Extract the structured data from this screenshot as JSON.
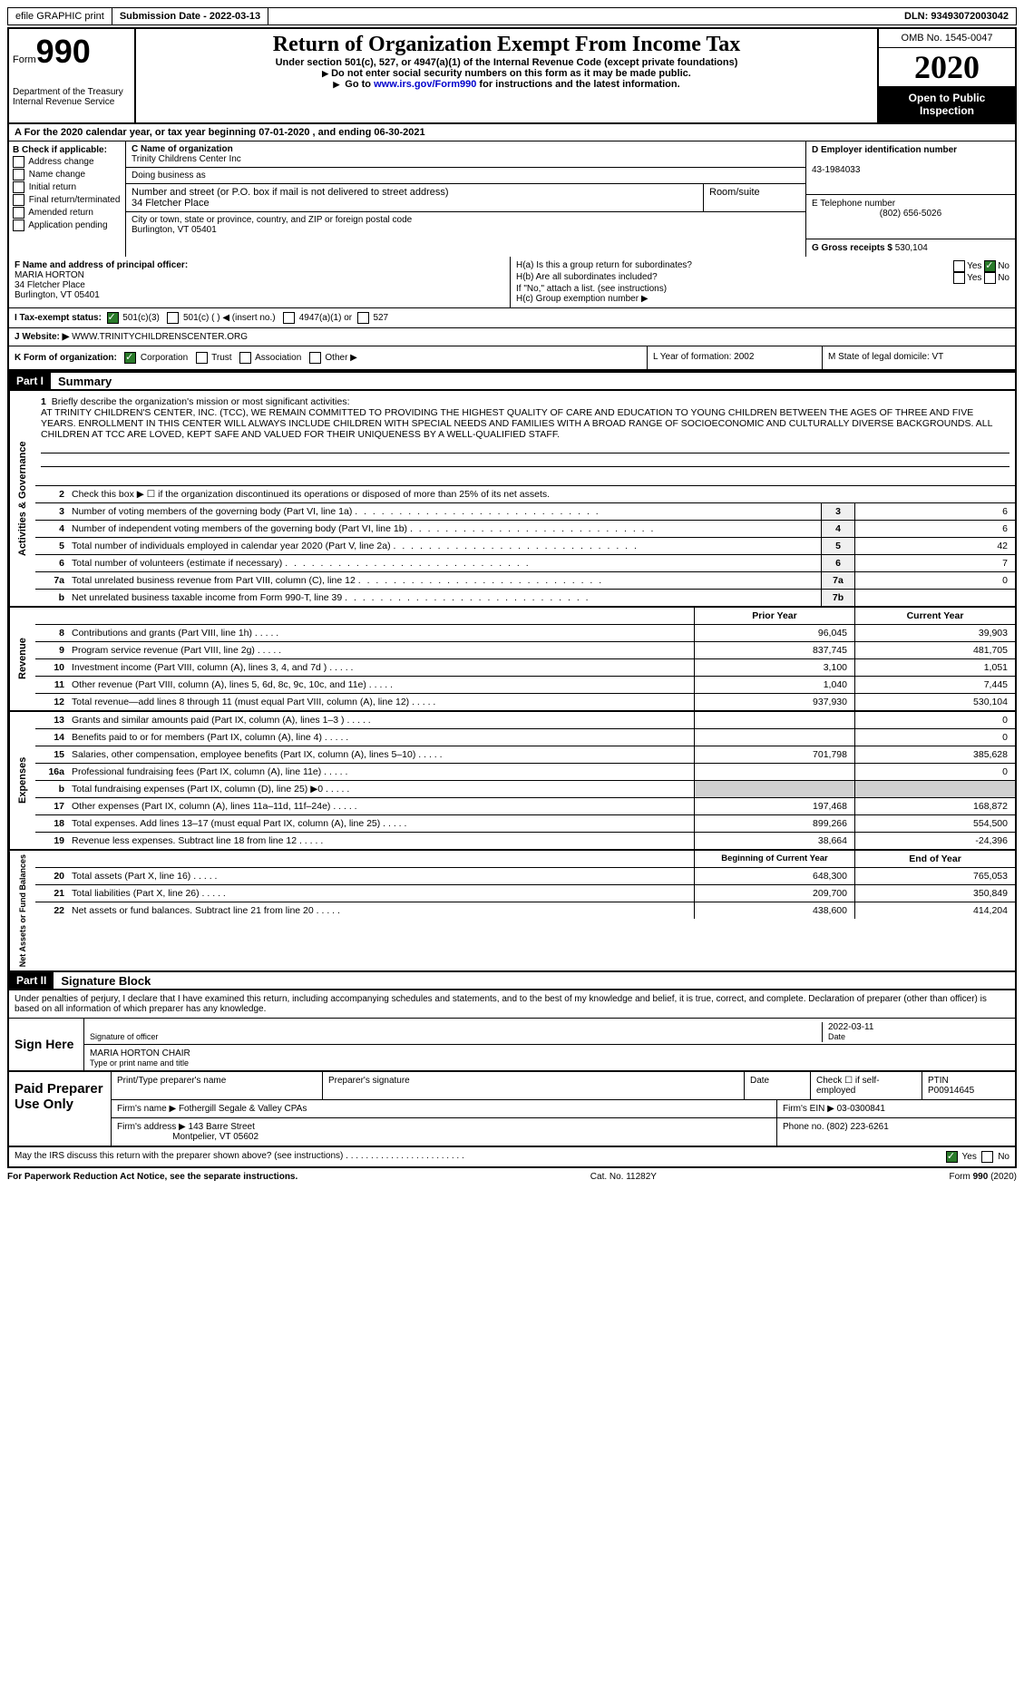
{
  "topbar": {
    "efile": "efile GRAPHIC print",
    "submission_label": "Submission Date - ",
    "submission_date": "2022-03-13",
    "dln_label": "DLN: ",
    "dln": "93493072003042"
  },
  "header": {
    "form_label": "Form",
    "form_num": "990",
    "title": "Return of Organization Exempt From Income Tax",
    "subtitle": "Under section 501(c), 527, or 4947(a)(1) of the Internal Revenue Code (except private foundations)",
    "note1": "Do not enter social security numbers on this form as it may be made public.",
    "note2_pre": "Go to ",
    "note2_link": "www.irs.gov/Form990",
    "note2_post": " for instructions and the latest information.",
    "dept": "Department of the Treasury\nInternal Revenue Service",
    "omb": "OMB No. 1545-0047",
    "year": "2020",
    "open": "Open to Public Inspection"
  },
  "rowA": {
    "text": "For the 2020 calendar year, or tax year beginning 07-01-2020   , and ending 06-30-2021"
  },
  "boxB": {
    "label": "B Check if applicable:",
    "opts": [
      "Address change",
      "Name change",
      "Initial return",
      "Final return/terminated",
      "Amended return",
      "Application pending"
    ]
  },
  "boxC": {
    "name_label": "C Name of organization",
    "name": "Trinity Childrens Center Inc",
    "dba_label": "Doing business as",
    "dba": "",
    "addr_label": "Number and street (or P.O. box if mail is not delivered to street address)",
    "addr": "34 Fletcher Place",
    "room_label": "Room/suite",
    "city_label": "City or town, state or province, country, and ZIP or foreign postal code",
    "city": "Burlington, VT  05401"
  },
  "boxD": {
    "label": "D Employer identification number",
    "ein": "43-1984033",
    "tel_label": "E Telephone number",
    "tel": "(802) 656-5026",
    "gross_label": "G Gross receipts $ ",
    "gross": "530,104"
  },
  "boxF": {
    "label": "F Name and address of principal officer:",
    "name": "MARIA HORTON",
    "addr1": "34 Fletcher Place",
    "addr2": "Burlington, VT  05401"
  },
  "boxH": {
    "ha": "H(a)  Is this a group return for subordinates?",
    "hb": "H(b)  Are all subordinates included?",
    "hb_note": "If \"No,\" attach a list. (see instructions)",
    "hc": "H(c)  Group exemption number ▶",
    "yes": "Yes",
    "no": "No"
  },
  "rowI": {
    "label": "I   Tax-exempt status:",
    "opt1": "501(c)(3)",
    "opt2": "501(c) (   ) ◀ (insert no.)",
    "opt3": "4947(a)(1) or",
    "opt4": "527"
  },
  "rowJ": {
    "label": "J   Website: ▶",
    "site": " WWW.TRINITYCHILDRENSCENTER.ORG"
  },
  "rowK": {
    "label": "K Form of organization:",
    "opts": [
      "Corporation",
      "Trust",
      "Association",
      "Other ▶"
    ],
    "L": "L Year of formation: 2002",
    "M": "M State of legal domicile: VT"
  },
  "part1": {
    "header": "Part I",
    "title": "Summary"
  },
  "mission": {
    "label": "Briefly describe the organization's mission or most significant activities:",
    "text": "AT TRINITY CHILDREN'S CENTER, INC. (TCC), WE REMAIN COMMITTED TO PROVIDING THE HIGHEST QUALITY OF CARE AND EDUCATION TO YOUNG CHILDREN BETWEEN THE AGES OF THREE AND FIVE YEARS. ENROLLMENT IN THIS CENTER WILL ALWAYS INCLUDE CHILDREN WITH SPECIAL NEEDS AND FAMILIES WITH A BROAD RANGE OF SOCIOECONOMIC AND CULTURALLY DIVERSE BACKGROUNDS. ALL CHILDREN AT TCC ARE LOVED, KEPT SAFE AND VALUED FOR THEIR UNIQUENESS BY A WELL-QUALIFIED STAFF."
  },
  "governance": {
    "side": "Activities & Governance",
    "line2": "Check this box ▶ ☐  if the organization discontinued its operations or disposed of more than 25% of its net assets.",
    "lines": [
      {
        "n": "3",
        "t": "Number of voting members of the governing body (Part VI, line 1a)",
        "b": "3",
        "v": "6"
      },
      {
        "n": "4",
        "t": "Number of independent voting members of the governing body (Part VI, line 1b)",
        "b": "4",
        "v": "6"
      },
      {
        "n": "5",
        "t": "Total number of individuals employed in calendar year 2020 (Part V, line 2a)",
        "b": "5",
        "v": "42"
      },
      {
        "n": "6",
        "t": "Total number of volunteers (estimate if necessary)",
        "b": "6",
        "v": "7"
      },
      {
        "n": "7a",
        "t": "Total unrelated business revenue from Part VIII, column (C), line 12",
        "b": "7a",
        "v": "0"
      },
      {
        "n": "b",
        "t": "Net unrelated business taxable income from Form 990-T, line 39",
        "b": "7b",
        "v": ""
      }
    ]
  },
  "revenue": {
    "side": "Revenue",
    "header_prior": "Prior Year",
    "header_current": "Current Year",
    "lines": [
      {
        "n": "8",
        "t": "Contributions and grants (Part VIII, line 1h)",
        "p": "96,045",
        "c": "39,903"
      },
      {
        "n": "9",
        "t": "Program service revenue (Part VIII, line 2g)",
        "p": "837,745",
        "c": "481,705"
      },
      {
        "n": "10",
        "t": "Investment income (Part VIII, column (A), lines 3, 4, and 7d )",
        "p": "3,100",
        "c": "1,051"
      },
      {
        "n": "11",
        "t": "Other revenue (Part VIII, column (A), lines 5, 6d, 8c, 9c, 10c, and 11e)",
        "p": "1,040",
        "c": "7,445"
      },
      {
        "n": "12",
        "t": "Total revenue—add lines 8 through 11 (must equal Part VIII, column (A), line 12)",
        "p": "937,930",
        "c": "530,104"
      }
    ]
  },
  "expenses": {
    "side": "Expenses",
    "lines": [
      {
        "n": "13",
        "t": "Grants and similar amounts paid (Part IX, column (A), lines 1–3 )",
        "p": "",
        "c": "0"
      },
      {
        "n": "14",
        "t": "Benefits paid to or for members (Part IX, column (A), line 4)",
        "p": "",
        "c": "0"
      },
      {
        "n": "15",
        "t": "Salaries, other compensation, employee benefits (Part IX, column (A), lines 5–10)",
        "p": "701,798",
        "c": "385,628"
      },
      {
        "n": "16a",
        "t": "Professional fundraising fees (Part IX, column (A), line 11e)",
        "p": "",
        "c": "0"
      },
      {
        "n": "b",
        "t": "Total fundraising expenses (Part IX, column (D), line 25) ▶0",
        "p": "",
        "c": ""
      },
      {
        "n": "17",
        "t": "Other expenses (Part IX, column (A), lines 11a–11d, 11f–24e)",
        "p": "197,468",
        "c": "168,872"
      },
      {
        "n": "18",
        "t": "Total expenses. Add lines 13–17 (must equal Part IX, column (A), line 25)",
        "p": "899,266",
        "c": "554,500"
      },
      {
        "n": "19",
        "t": "Revenue less expenses. Subtract line 18 from line 12",
        "p": "38,664",
        "c": "-24,396"
      }
    ]
  },
  "netassets": {
    "side": "Net Assets or Fund Balances",
    "header_begin": "Beginning of Current Year",
    "header_end": "End of Year",
    "lines": [
      {
        "n": "20",
        "t": "Total assets (Part X, line 16)",
        "p": "648,300",
        "c": "765,053"
      },
      {
        "n": "21",
        "t": "Total liabilities (Part X, line 26)",
        "p": "209,700",
        "c": "350,849"
      },
      {
        "n": "22",
        "t": "Net assets or fund balances. Subtract line 21 from line 20",
        "p": "438,600",
        "c": "414,204"
      }
    ]
  },
  "part2": {
    "header": "Part II",
    "title": "Signature Block"
  },
  "sig": {
    "declaration": "Under penalties of perjury, I declare that I have examined this return, including accompanying schedules and statements, and to the best of my knowledge and belief, it is true, correct, and complete. Declaration of preparer (other than officer) is based on all information of which preparer has any knowledge.",
    "sign_here": "Sign Here",
    "sig_officer": "Signature of officer",
    "date": "Date",
    "sig_date": "2022-03-11",
    "name_title": "MARIA HORTON CHAIR",
    "type_print": "Type or print name and title"
  },
  "prep": {
    "label": "Paid Preparer Use Only",
    "h_name": "Print/Type preparer's name",
    "h_sig": "Preparer's signature",
    "h_date": "Date",
    "h_check": "Check ☐ if self-employed",
    "h_ptin": "PTIN",
    "ptin": "P00914645",
    "firm_label": "Firm's name    ▶ ",
    "firm": "Fothergill Segale & Valley CPAs",
    "ein_label": "Firm's EIN ▶ ",
    "ein": "03-0300841",
    "addr_label": "Firm's address ▶ ",
    "addr1": "143 Barre Street",
    "addr2": "Montpelier, VT  05602",
    "phone_label": "Phone no. ",
    "phone": "(802) 223-6261"
  },
  "bottom": {
    "discuss": "May the IRS discuss this return with the preparer shown above? (see instructions)",
    "yes": "Yes",
    "no": "No"
  },
  "footer": {
    "left": "For Paperwork Reduction Act Notice, see the separate instructions.",
    "center": "Cat. No. 11282Y",
    "right": "Form 990 (2020)"
  }
}
